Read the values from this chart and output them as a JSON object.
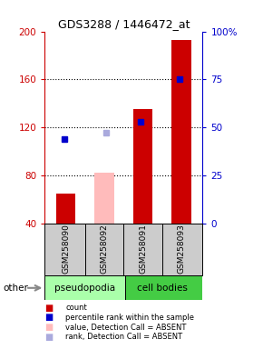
{
  "title": "GDS3288 / 1446472_at",
  "samples": [
    "GSM258090",
    "GSM258092",
    "GSM258091",
    "GSM258093"
  ],
  "count_values": [
    65,
    null,
    135,
    193
  ],
  "count_absent": [
    null,
    82,
    null,
    null
  ],
  "rank_values": [
    44,
    null,
    53,
    75
  ],
  "rank_absent": [
    null,
    47,
    null,
    null
  ],
  "ylim_left": [
    40,
    200
  ],
  "ylim_right": [
    0,
    100
  ],
  "yticks_left": [
    40,
    80,
    120,
    160,
    200
  ],
  "yticks_right": [
    0,
    25,
    50,
    75,
    100
  ],
  "grid_lines": [
    80,
    120,
    160
  ],
  "bar_color_present": "#cc0000",
  "bar_color_absent": "#ffbbbb",
  "dot_color_present": "#0000cc",
  "dot_color_absent": "#aaaadd",
  "bar_width": 0.5,
  "pseudo_color": "#aaffaa",
  "cell_color": "#44cc44",
  "sample_bg": "#cccccc",
  "legend_items": [
    [
      "#cc0000",
      "count"
    ],
    [
      "#0000cc",
      "percentile rank within the sample"
    ],
    [
      "#ffbbbb",
      "value, Detection Call = ABSENT"
    ],
    [
      "#aaaadd",
      "rank, Detection Call = ABSENT"
    ]
  ]
}
